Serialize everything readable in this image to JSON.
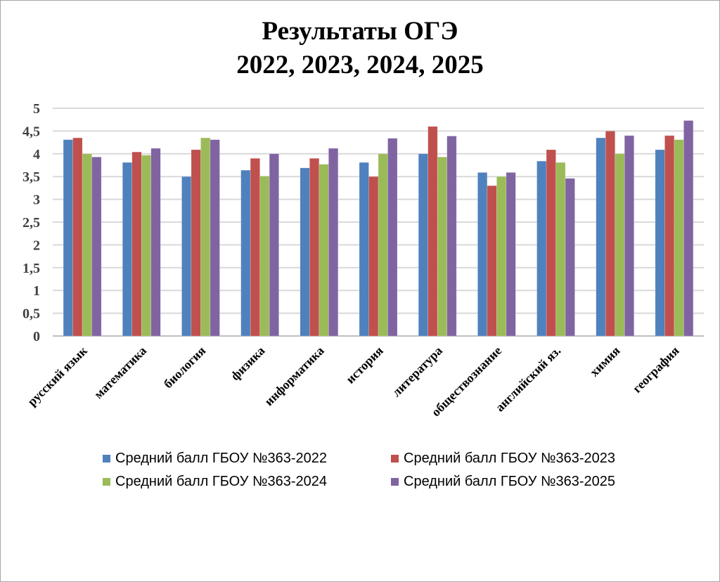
{
  "chart_data": {
    "type": "bar",
    "title": [
      "Результаты ОГЭ",
      "2022, 2023, 2024, 2025"
    ],
    "xlabel": "",
    "ylabel": "",
    "ylim": [
      0,
      5
    ],
    "yticks": [
      "0",
      "0,5",
      "1",
      "1,5",
      "2",
      "2,5",
      "3",
      "3,5",
      "4",
      "4,5",
      "5"
    ],
    "grid": true,
    "legend_position": "bottom",
    "categories": [
      "русский язык",
      "математика",
      "биология",
      "физика",
      "информатика",
      "история",
      "литература",
      "обществознание",
      "английский яз.",
      "химия",
      "география"
    ],
    "series": [
      {
        "name": "Средний балл ГБОУ №363-2022",
        "color": "#4f81bd",
        "values": [
          4.31,
          3.81,
          3.5,
          3.64,
          3.69,
          3.81,
          4.0,
          3.59,
          3.84,
          4.35,
          4.09
        ]
      },
      {
        "name": "Средний балл ГБОУ №363-2023",
        "color": "#c0504d",
        "values": [
          4.35,
          4.04,
          4.09,
          3.9,
          3.9,
          3.5,
          4.6,
          3.3,
          4.09,
          4.5,
          4.4
        ]
      },
      {
        "name": "Средний балл ГБОУ №363-2024",
        "color": "#9bbb59",
        "values": [
          4.0,
          3.97,
          4.35,
          3.51,
          3.77,
          4.0,
          3.93,
          3.5,
          3.81,
          4.0,
          4.31
        ]
      },
      {
        "name": "Средний балл ГБОУ №363-2025",
        "color": "#8064a2",
        "values": [
          3.93,
          4.12,
          4.31,
          4.0,
          4.12,
          4.34,
          4.39,
          3.59,
          3.46,
          4.4,
          4.73
        ]
      }
    ]
  }
}
